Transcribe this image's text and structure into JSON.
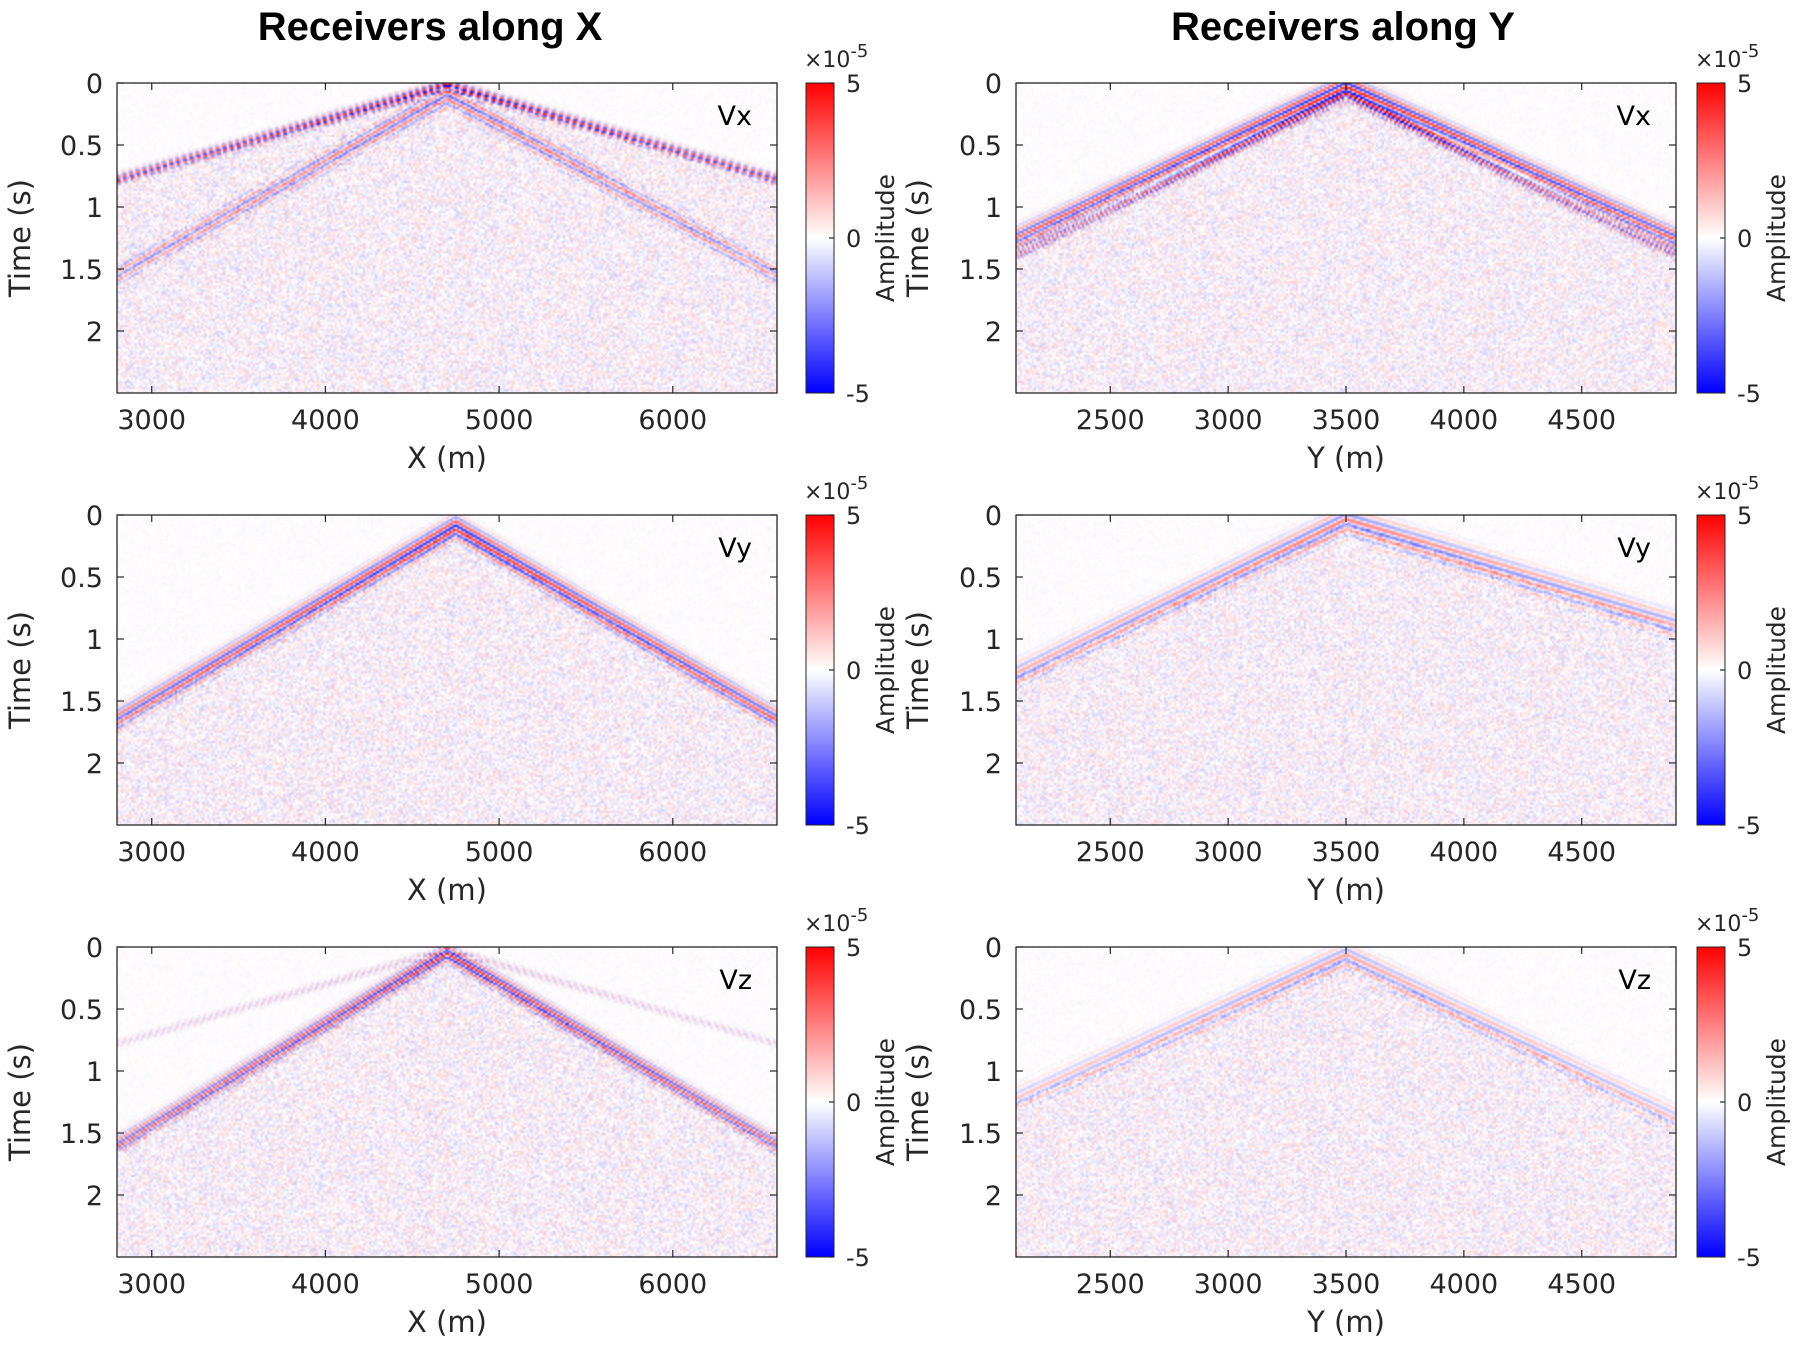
{
  "figure": {
    "col_titles": [
      "Receivers along X",
      "Receivers along Y"
    ]
  },
  "colorbar": {
    "label": "Amplitude",
    "ticks": [
      "5",
      "0",
      "-5"
    ],
    "exponent_base": "×10",
    "exponent_power": "-5",
    "colormap": [
      "#0000ff",
      "#ffffff",
      "#ff0000"
    ]
  },
  "chart_data": [
    {
      "type": "heatmap",
      "panel": "x-vx",
      "component": "Vx",
      "xlabel": "X (m)",
      "ylabel": "Time (s)",
      "xlim": [
        2800,
        6600
      ],
      "ylim": [
        0,
        2.5
      ],
      "y_reversed": true,
      "xticks": [
        3000,
        4000,
        5000,
        6000
      ],
      "yticks": [
        0,
        0.5,
        1,
        1.5,
        2
      ],
      "source_x": 4700,
      "color_range": [
        -5e-05,
        5e-05
      ],
      "events": [
        {
          "name": "direct",
          "apex_t": 0.02,
          "left_t": 0.78,
          "right_t": 0.78,
          "strength": 1.0,
          "width": 0.05
        },
        {
          "name": "converted",
          "apex_t": 0.1,
          "left_t": 1.55,
          "right_t": 1.55,
          "strength": 0.6,
          "width": 0.1
        }
      ]
    },
    {
      "type": "heatmap",
      "panel": "y-vx",
      "component": "Vx",
      "xlabel": "Y (m)",
      "ylabel": "Time (s)",
      "xlim": [
        2100,
        4900
      ],
      "ylim": [
        0,
        2.5
      ],
      "y_reversed": true,
      "xticks": [
        2500,
        3000,
        3500,
        4000,
        4500
      ],
      "yticks": [
        0,
        0.5,
        1,
        1.5,
        2
      ],
      "source_x": 3500,
      "color_range": [
        -5e-05,
        5e-05
      ],
      "events": [
        {
          "name": "direct",
          "apex_t": 0.02,
          "left_t": 1.25,
          "right_t": 1.25,
          "strength": 1.0,
          "width": 0.09
        },
        {
          "name": "converted",
          "apex_t": 0.1,
          "left_t": 1.38,
          "right_t": 1.38,
          "strength": 0.85,
          "width": 0.06
        }
      ]
    },
    {
      "type": "heatmap",
      "panel": "x-vy",
      "component": "Vy",
      "xlabel": "X (m)",
      "ylabel": "Time (s)",
      "xlim": [
        2800,
        6600
      ],
      "ylim": [
        0,
        2.5
      ],
      "y_reversed": true,
      "xticks": [
        3000,
        4000,
        5000,
        6000
      ],
      "yticks": [
        0,
        0.5,
        1,
        1.5,
        2
      ],
      "source_x": 4750,
      "color_range": [
        -5e-05,
        5e-05
      ],
      "events": [
        {
          "name": "direct",
          "apex_t": 0.1,
          "left_t": 1.65,
          "right_t": 1.65,
          "strength": 0.95,
          "width": 0.1
        }
      ]
    },
    {
      "type": "heatmap",
      "panel": "y-vy",
      "component": "Vy",
      "xlabel": "Y (m)",
      "ylabel": "Time (s)",
      "xlim": [
        2100,
        4900
      ],
      "ylim": [
        0,
        2.5
      ],
      "y_reversed": true,
      "xticks": [
        2500,
        3000,
        3500,
        4000,
        4500
      ],
      "yticks": [
        0,
        0.5,
        1,
        1.5,
        2
      ],
      "source_x": 3500,
      "color_range": [
        -5e-05,
        5e-05
      ],
      "events": [
        {
          "name": "direct",
          "apex_t": 0.05,
          "left_t": 1.3,
          "right_t": 0.9,
          "strength": 0.55,
          "width": 0.12
        }
      ]
    },
    {
      "type": "heatmap",
      "panel": "x-vz",
      "component": "Vz",
      "xlabel": "X (m)",
      "ylabel": "Time (s)",
      "xlim": [
        2800,
        6600
      ],
      "ylim": [
        0,
        2.5
      ],
      "y_reversed": true,
      "xticks": [
        3000,
        4000,
        5000,
        6000
      ],
      "yticks": [
        0,
        0.5,
        1,
        1.5,
        2
      ],
      "source_x": 4700,
      "color_range": [
        -5e-05,
        5e-05
      ],
      "events": [
        {
          "name": "direct",
          "apex_t": 0.05,
          "left_t": 1.6,
          "right_t": 1.6,
          "strength": 0.95,
          "width": 0.08
        },
        {
          "name": "faint",
          "apex_t": 0.02,
          "left_t": 0.78,
          "right_t": 0.78,
          "strength": 0.25,
          "width": 0.04
        }
      ]
    },
    {
      "type": "heatmap",
      "panel": "y-vz",
      "component": "Vz",
      "xlabel": "Y (m)",
      "ylabel": "Time (s)",
      "xlim": [
        2100,
        4900
      ],
      "ylim": [
        0,
        2.5
      ],
      "y_reversed": true,
      "xticks": [
        2500,
        3000,
        3500,
        4000,
        4500
      ],
      "yticks": [
        0,
        0.5,
        1,
        1.5,
        2
      ],
      "source_x": 3500,
      "color_range": [
        -5e-05,
        5e-05
      ],
      "events": [
        {
          "name": "direct",
          "apex_t": 0.08,
          "left_t": 1.25,
          "right_t": 1.4,
          "strength": 0.4,
          "width": 0.12
        }
      ]
    }
  ]
}
